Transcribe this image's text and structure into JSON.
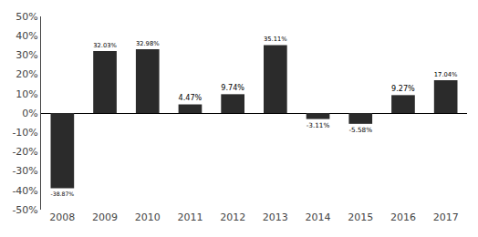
{
  "chart_data": {
    "type": "bar",
    "categories": [
      "2008",
      "2009",
      "2010",
      "2011",
      "2012",
      "2013",
      "2014",
      "2015",
      "2016",
      "2017"
    ],
    "values": [
      -38.87,
      32.03,
      32.98,
      4.47,
      9.74,
      35.11,
      -3.11,
      -5.58,
      9.27,
      17.04
    ],
    "value_labels": [
      "-38.87%",
      "32.03%",
      "32.98%",
      "4.47%",
      "9.74%",
      "35.11%",
      "-3.11%",
      "-5.58%",
      "9.27%",
      "17.04%"
    ],
    "data_labels": true,
    "color": "#2b2b2b",
    "ylim": [
      -50,
      50
    ],
    "yticks": [
      {
        "value": -50,
        "label": "-50%"
      },
      {
        "value": -40,
        "label": "-40%"
      },
      {
        "value": -30,
        "label": "-30%"
      },
      {
        "value": -20,
        "label": "-20%"
      },
      {
        "value": -10,
        "label": "-10%"
      },
      {
        "value": 0,
        "label": "0%"
      },
      {
        "value": 10,
        "label": "10%"
      },
      {
        "value": 20,
        "label": "20%"
      },
      {
        "value": 30,
        "label": "30%"
      },
      {
        "value": 40,
        "label": "40%"
      },
      {
        "value": 50,
        "label": "50%"
      }
    ],
    "grid": false
  }
}
